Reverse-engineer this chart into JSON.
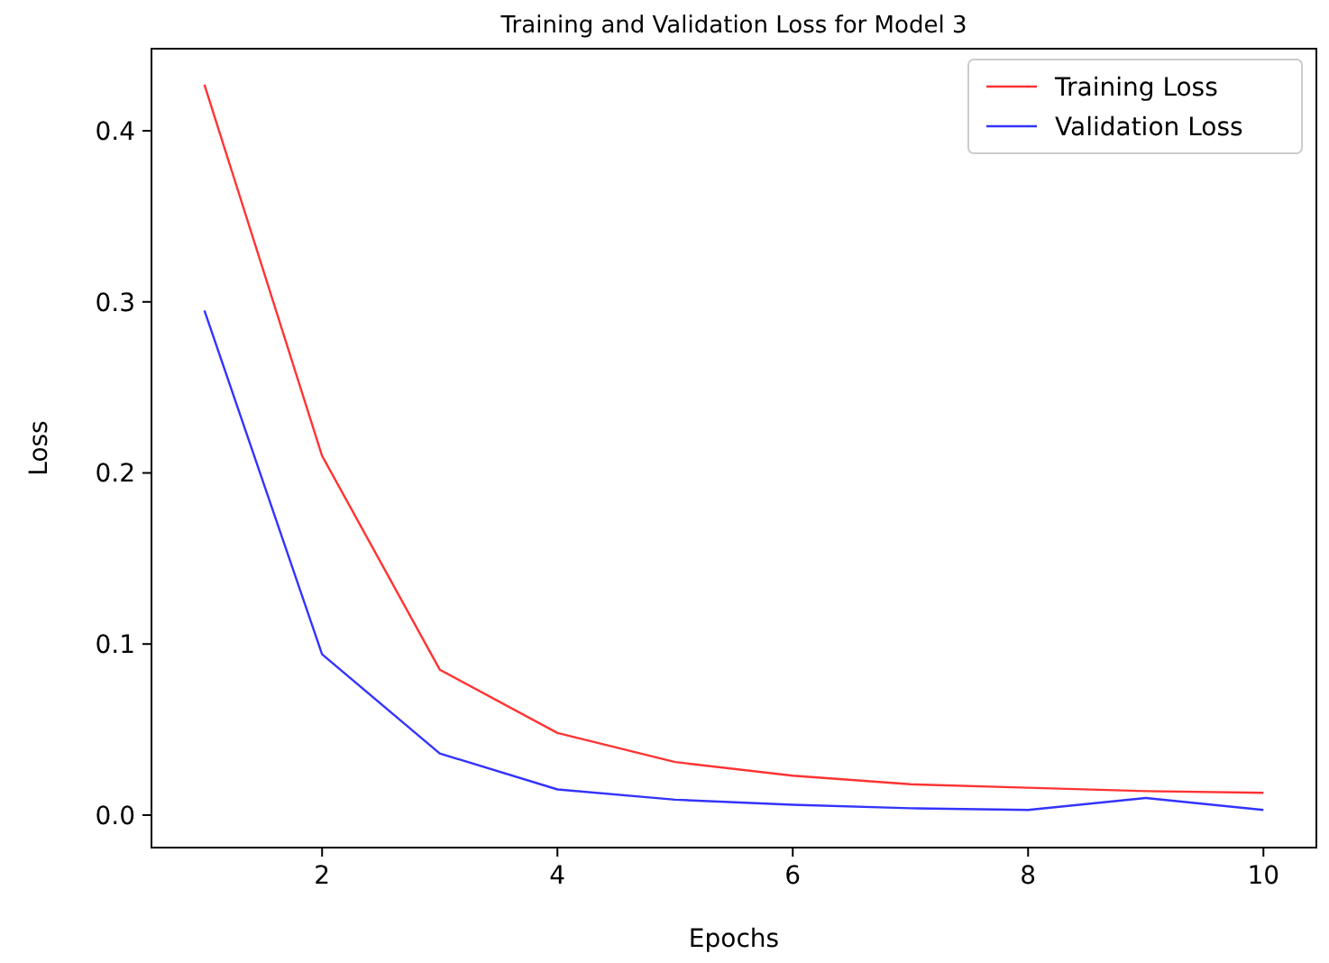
{
  "chart_data": {
    "type": "line",
    "title": "Training and Validation Loss for Model 3",
    "xlabel": "Epochs",
    "ylabel": "Loss",
    "x": [
      1,
      2,
      3,
      4,
      5,
      6,
      7,
      8,
      9,
      10
    ],
    "series": [
      {
        "name": "Training Loss",
        "color": "#ff3333",
        "values": [
          0.427,
          0.21,
          0.085,
          0.048,
          0.031,
          0.023,
          0.018,
          0.016,
          0.014,
          0.013
        ]
      },
      {
        "name": "Validation Loss",
        "color": "#3333ff",
        "values": [
          0.295,
          0.094,
          0.036,
          0.015,
          0.009,
          0.006,
          0.004,
          0.003,
          0.01,
          0.003
        ]
      }
    ],
    "xlim": [
      0.55,
      10.45
    ],
    "xticks": [
      2,
      4,
      6,
      8,
      10
    ],
    "ylim": [
      -0.019,
      0.448
    ],
    "yticks": [
      {
        "value": 0,
        "label": "0.0"
      },
      {
        "value": 0.1,
        "label": "0.1"
      },
      {
        "value": 0.2,
        "label": "0.2"
      },
      {
        "value": 0.3,
        "label": "0.3"
      },
      {
        "value": 0.4,
        "label": "0.4"
      }
    ],
    "legend": "top right",
    "grid": false,
    "marker": "none",
    "line_style": "solid"
  }
}
